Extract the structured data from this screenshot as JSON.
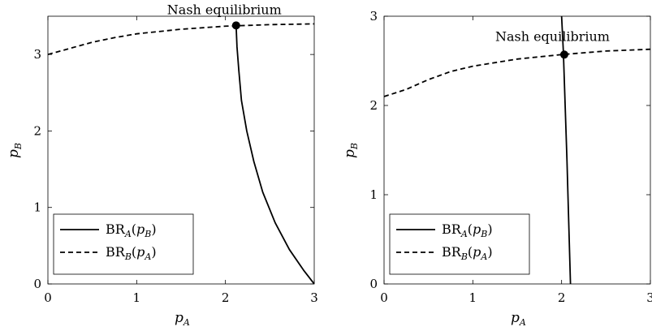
{
  "chart_data": [
    {
      "type": "line",
      "xlabel": "p",
      "xlabel_sub": "A",
      "ylabel": "p",
      "ylabel_sub": "B",
      "xlim": [
        0,
        3
      ],
      "ylim": [
        0,
        3.5
      ],
      "xticks": [
        "0",
        "1",
        "2",
        "3"
      ],
      "yticks": [
        "0",
        "1",
        "2",
        "3"
      ],
      "grid": false,
      "legend_position": "bottom-left",
      "series": [
        {
          "name": "BR",
          "name_sub": "A",
          "name_arg": "p",
          "name_arg_sub": "B",
          "style": "solid",
          "points": [
            [
              2.12,
              3.38
            ],
            [
              2.13,
              3.1
            ],
            [
              2.15,
              2.8
            ],
            [
              2.18,
              2.4
            ],
            [
              2.24,
              2.0
            ],
            [
              2.32,
              1.6
            ],
            [
              2.42,
              1.2
            ],
            [
              2.56,
              0.8
            ],
            [
              2.72,
              0.45
            ],
            [
              2.88,
              0.18
            ],
            [
              3.0,
              0.0
            ]
          ]
        },
        {
          "name": "BR",
          "name_sub": "B",
          "name_arg": "p",
          "name_arg_sub": "A",
          "style": "dashed",
          "points": [
            [
              0.0,
              3.0
            ],
            [
              0.25,
              3.08
            ],
            [
              0.5,
              3.16
            ],
            [
              0.75,
              3.22
            ],
            [
              1.0,
              3.27
            ],
            [
              1.5,
              3.33
            ],
            [
              2.0,
              3.37
            ],
            [
              2.5,
              3.39
            ],
            [
              3.0,
              3.4
            ]
          ]
        }
      ],
      "annotations": [
        {
          "text": "Nash equilibrium",
          "x": 2.12,
          "y": 3.38
        }
      ]
    },
    {
      "type": "line",
      "xlabel": "p",
      "xlabel_sub": "A",
      "ylabel": "p",
      "ylabel_sub": "B",
      "xlim": [
        0,
        3
      ],
      "ylim": [
        0,
        3
      ],
      "xticks": [
        "0",
        "1",
        "2",
        "3"
      ],
      "yticks": [
        "0",
        "1",
        "2",
        "3"
      ],
      "grid": false,
      "legend_position": "bottom-left",
      "series": [
        {
          "name": "BR",
          "name_sub": "A",
          "name_arg": "p",
          "name_arg_sub": "B",
          "style": "solid",
          "points": [
            [
              2.0,
              3.0
            ],
            [
              2.02,
              2.6
            ],
            [
              2.04,
              2.0
            ],
            [
              2.06,
              1.4
            ],
            [
              2.08,
              0.7
            ],
            [
              2.1,
              0.0
            ]
          ]
        },
        {
          "name": "BR",
          "name_sub": "B",
          "name_arg": "p",
          "name_arg_sub": "A",
          "style": "dashed",
          "points": [
            [
              0.0,
              2.1
            ],
            [
              0.25,
              2.18
            ],
            [
              0.5,
              2.29
            ],
            [
              0.75,
              2.38
            ],
            [
              1.0,
              2.44
            ],
            [
              1.5,
              2.52
            ],
            [
              2.0,
              2.57
            ],
            [
              2.5,
              2.61
            ],
            [
              3.0,
              2.63
            ]
          ]
        }
      ],
      "annotations": [
        {
          "text": "Nash equilibrium",
          "x": 2.03,
          "y": 2.57
        }
      ]
    }
  ]
}
